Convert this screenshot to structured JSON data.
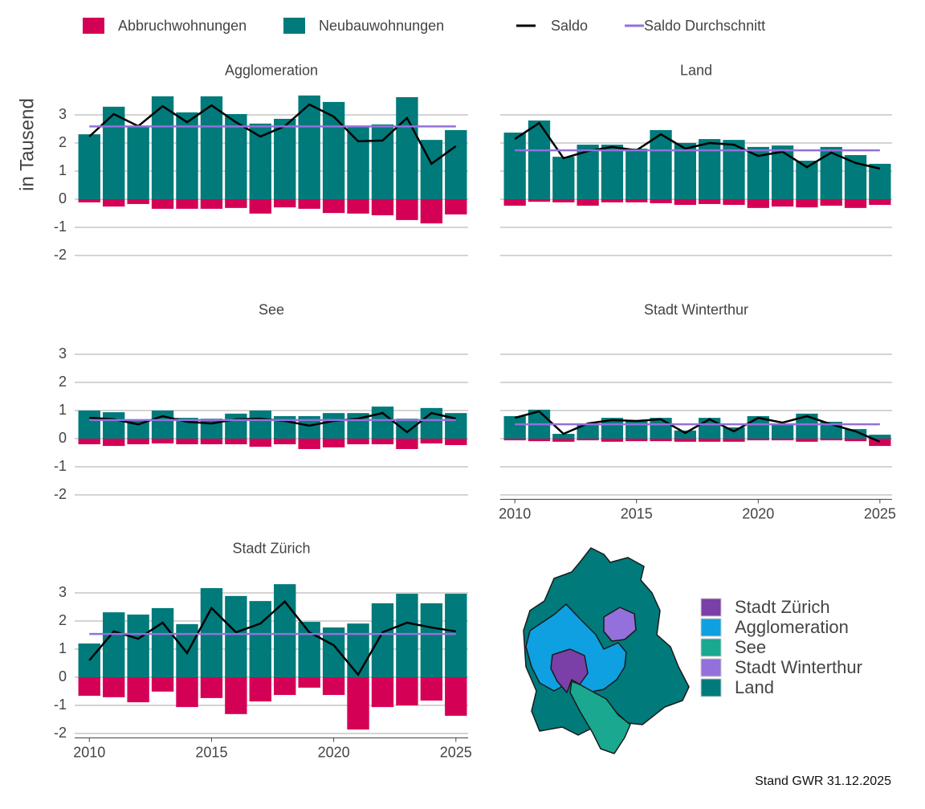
{
  "y_label": "in Tausend",
  "footnote": "Stand GWR 31.12.2025",
  "map": {
    "legend": [
      {
        "label": "Stadt Zürich",
        "color": "#7b3fa8"
      },
      {
        "label": "Agglomeration",
        "color": "#0ea0e0"
      },
      {
        "label": "See",
        "color": "#1aa890"
      },
      {
        "label": "Stadt Winterthur",
        "color": "#9370db"
      },
      {
        "label": "Land",
        "color": "#007a7a"
      }
    ]
  },
  "chart_data": [
    {
      "type": "bar",
      "title": "Agglomeration",
      "x": [
        2010,
        2011,
        2012,
        2013,
        2014,
        2015,
        2016,
        2017,
        2018,
        2019,
        2020,
        2021,
        2022,
        2023,
        2024,
        2025
      ],
      "series": [
        {
          "name": "Abbruchwohnungen",
          "type": "bar",
          "color": "#d40055",
          "values": [
            -0.11,
            -0.26,
            -0.17,
            -0.34,
            -0.34,
            -0.34,
            -0.31,
            -0.51,
            -0.29,
            -0.34,
            -0.49,
            -0.51,
            -0.57,
            -0.74,
            -0.86,
            -0.54
          ]
        },
        {
          "name": "Neubauwohnungen",
          "type": "bar",
          "color": "#007a7a",
          "values": [
            2.31,
            3.29,
            2.6,
            3.66,
            3.09,
            3.66,
            3.03,
            2.69,
            2.86,
            3.69,
            3.46,
            2.57,
            2.66,
            3.63,
            2.11,
            2.46
          ]
        },
        {
          "name": "Saldo",
          "type": "line",
          "color": "#000000",
          "values": [
            2.23,
            3.03,
            2.6,
            3.31,
            2.74,
            3.34,
            2.74,
            2.23,
            2.6,
            3.37,
            2.94,
            2.06,
            2.09,
            2.89,
            1.26,
            1.89
          ]
        },
        {
          "name": "Saldo Durchschnitt",
          "type": "line",
          "color": "#9370db",
          "values": [
            2.59,
            2.59,
            2.59,
            2.59,
            2.59,
            2.59,
            2.59,
            2.59,
            2.59,
            2.59,
            2.59,
            2.59,
            2.59,
            2.59,
            2.59,
            2.59
          ]
        }
      ],
      "xlim": [
        2009.4,
        2025.5
      ],
      "ylim": [
        -2.3,
        3.7
      ],
      "yticks": [
        -2,
        -1,
        0,
        1,
        2,
        3
      ],
      "ytick_labels": true,
      "grid": true
    },
    {
      "type": "bar",
      "title": "Land",
      "x": [
        2010,
        2011,
        2012,
        2013,
        2014,
        2015,
        2016,
        2017,
        2018,
        2019,
        2020,
        2021,
        2022,
        2023,
        2024,
        2025
      ],
      "series": [
        {
          "name": "Abbruchwohnungen",
          "type": "bar",
          "color": "#d40055",
          "values": [
            -0.23,
            -0.09,
            -0.11,
            -0.23,
            -0.11,
            -0.11,
            -0.14,
            -0.2,
            -0.17,
            -0.2,
            -0.31,
            -0.26,
            -0.29,
            -0.23,
            -0.31,
            -0.2
          ]
        },
        {
          "name": "Neubauwohnungen",
          "type": "bar",
          "color": "#007a7a",
          "values": [
            2.37,
            2.8,
            1.51,
            1.94,
            1.94,
            1.8,
            2.46,
            2.0,
            2.14,
            2.11,
            1.86,
            1.91,
            1.37,
            1.86,
            1.57,
            1.26
          ]
        },
        {
          "name": "Saldo",
          "type": "line",
          "color": "#000000",
          "values": [
            2.14,
            2.71,
            1.46,
            1.71,
            1.86,
            1.74,
            2.31,
            1.8,
            2.0,
            1.94,
            1.54,
            1.69,
            1.14,
            1.66,
            1.29,
            1.09
          ]
        },
        {
          "name": "Saldo Durchschnitt",
          "type": "line",
          "color": "#9370db",
          "values": [
            1.74,
            1.74,
            1.74,
            1.74,
            1.74,
            1.74,
            1.74,
            1.74,
            1.74,
            1.74,
            1.74,
            1.74,
            1.74,
            1.74,
            1.74,
            1.74
          ]
        }
      ],
      "xlim": [
        2009.4,
        2025.5
      ],
      "ylim": [
        -2.3,
        3.7
      ],
      "yticks": [
        -2,
        -1,
        0,
        1,
        2,
        3
      ],
      "ytick_labels": false,
      "grid": true
    },
    {
      "type": "bar",
      "title": "See",
      "x": [
        2010,
        2011,
        2012,
        2013,
        2014,
        2015,
        2016,
        2017,
        2018,
        2019,
        2020,
        2021,
        2022,
        2023,
        2024,
        2025
      ],
      "series": [
        {
          "name": "Abbruchwohnungen",
          "type": "bar",
          "color": "#d40055",
          "values": [
            -0.2,
            -0.26,
            -0.2,
            -0.17,
            -0.2,
            -0.2,
            -0.2,
            -0.29,
            -0.2,
            -0.37,
            -0.31,
            -0.2,
            -0.2,
            -0.37,
            -0.17,
            -0.23
          ]
        },
        {
          "name": "Neubauwohnungen",
          "type": "bar",
          "color": "#007a7a",
          "values": [
            1.0,
            0.94,
            0.66,
            1.0,
            0.74,
            0.71,
            0.89,
            1.0,
            0.8,
            0.8,
            0.91,
            0.91,
            1.14,
            0.71,
            1.09,
            0.91
          ]
        },
        {
          "name": "Saldo",
          "type": "line",
          "color": "#000000",
          "values": [
            0.74,
            0.69,
            0.51,
            0.8,
            0.6,
            0.54,
            0.69,
            0.71,
            0.63,
            0.46,
            0.63,
            0.71,
            0.91,
            0.23,
            0.91,
            0.71
          ]
        },
        {
          "name": "Saldo Durchschnitt",
          "type": "line",
          "color": "#9370db",
          "values": [
            0.66,
            0.66,
            0.66,
            0.66,
            0.66,
            0.66,
            0.66,
            0.66,
            0.66,
            0.66,
            0.66,
            0.66,
            0.66,
            0.66,
            0.66,
            0.66
          ]
        }
      ],
      "xlim": [
        2009.4,
        2025.5
      ],
      "ylim": [
        -2.3,
        3.7
      ],
      "yticks": [
        -2,
        -1,
        0,
        1,
        2,
        3
      ],
      "ytick_labels": true,
      "grid": true
    },
    {
      "type": "bar",
      "title": "Stadt Winterthur",
      "x": [
        2010,
        2011,
        2012,
        2013,
        2014,
        2015,
        2016,
        2017,
        2018,
        2019,
        2020,
        2021,
        2022,
        2023,
        2024,
        2025
      ],
      "series": [
        {
          "name": "Abbruchwohnungen",
          "type": "bar",
          "color": "#d40055",
          "values": [
            -0.06,
            -0.09,
            -0.11,
            -0.06,
            -0.11,
            -0.09,
            -0.09,
            -0.11,
            -0.11,
            -0.11,
            -0.06,
            -0.06,
            -0.11,
            -0.06,
            -0.09,
            -0.26
          ]
        },
        {
          "name": "Neubauwohnungen",
          "type": "bar",
          "color": "#007a7a",
          "values": [
            0.8,
            1.03,
            0.17,
            0.54,
            0.74,
            0.66,
            0.74,
            0.29,
            0.74,
            0.4,
            0.8,
            0.51,
            0.89,
            0.6,
            0.34,
            0.14
          ]
        },
        {
          "name": "Saldo",
          "type": "line",
          "color": "#000000",
          "values": [
            0.74,
            0.97,
            0.17,
            0.54,
            0.66,
            0.63,
            0.69,
            0.2,
            0.69,
            0.26,
            0.74,
            0.57,
            0.8,
            0.51,
            0.26,
            -0.11
          ]
        },
        {
          "name": "Saldo Durchschnitt",
          "type": "line",
          "color": "#9370db",
          "values": [
            0.51,
            0.51,
            0.51,
            0.51,
            0.51,
            0.51,
            0.51,
            0.51,
            0.51,
            0.51,
            0.51,
            0.51,
            0.51,
            0.51,
            0.51,
            0.51
          ]
        }
      ],
      "xlim": [
        2009.4,
        2025.5
      ],
      "ylim": [
        -2.3,
        3.7
      ],
      "yticks": [
        -2,
        -1,
        0,
        1,
        2,
        3
      ],
      "ytick_labels": false,
      "grid": true,
      "xticks": [
        2010,
        2015,
        2020,
        2025
      ]
    },
    {
      "type": "bar",
      "title": "Stadt Zürich",
      "x": [
        2010,
        2011,
        2012,
        2013,
        2014,
        2015,
        2016,
        2017,
        2018,
        2019,
        2020,
        2021,
        2022,
        2023,
        2024,
        2025
      ],
      "series": [
        {
          "name": "Abbruchwohnungen",
          "type": "bar",
          "color": "#d40055",
          "values": [
            -0.66,
            -0.71,
            -0.89,
            -0.51,
            -1.06,
            -0.74,
            -1.31,
            -0.86,
            -0.63,
            -0.37,
            -0.63,
            -1.86,
            -1.06,
            -1.0,
            -0.83,
            -1.37
          ]
        },
        {
          "name": "Neubauwohnungen",
          "type": "bar",
          "color": "#007a7a",
          "values": [
            1.2,
            2.31,
            2.23,
            2.46,
            1.89,
            3.17,
            2.89,
            2.71,
            3.31,
            1.97,
            1.77,
            1.91,
            2.63,
            2.97,
            2.63,
            2.97
          ]
        },
        {
          "name": "Saldo",
          "type": "line",
          "color": "#000000",
          "values": [
            0.6,
            1.63,
            1.37,
            1.94,
            0.86,
            2.46,
            1.6,
            1.91,
            2.69,
            1.6,
            1.14,
            0.09,
            1.6,
            1.94,
            1.77,
            1.63
          ]
        },
        {
          "name": "Saldo Durchschnitt",
          "type": "line",
          "color": "#9370db",
          "values": [
            1.54,
            1.54,
            1.54,
            1.54,
            1.54,
            1.54,
            1.54,
            1.54,
            1.54,
            1.54,
            1.54,
            1.54,
            1.54,
            1.54,
            1.54,
            1.54
          ]
        }
      ],
      "xlim": [
        2009.4,
        2025.5
      ],
      "ylim": [
        -2.3,
        3.7
      ],
      "yticks": [
        -2,
        -1,
        0,
        1,
        2,
        3
      ],
      "ytick_labels": true,
      "grid": true,
      "xticks": [
        2010,
        2015,
        2020,
        2025
      ]
    }
  ]
}
